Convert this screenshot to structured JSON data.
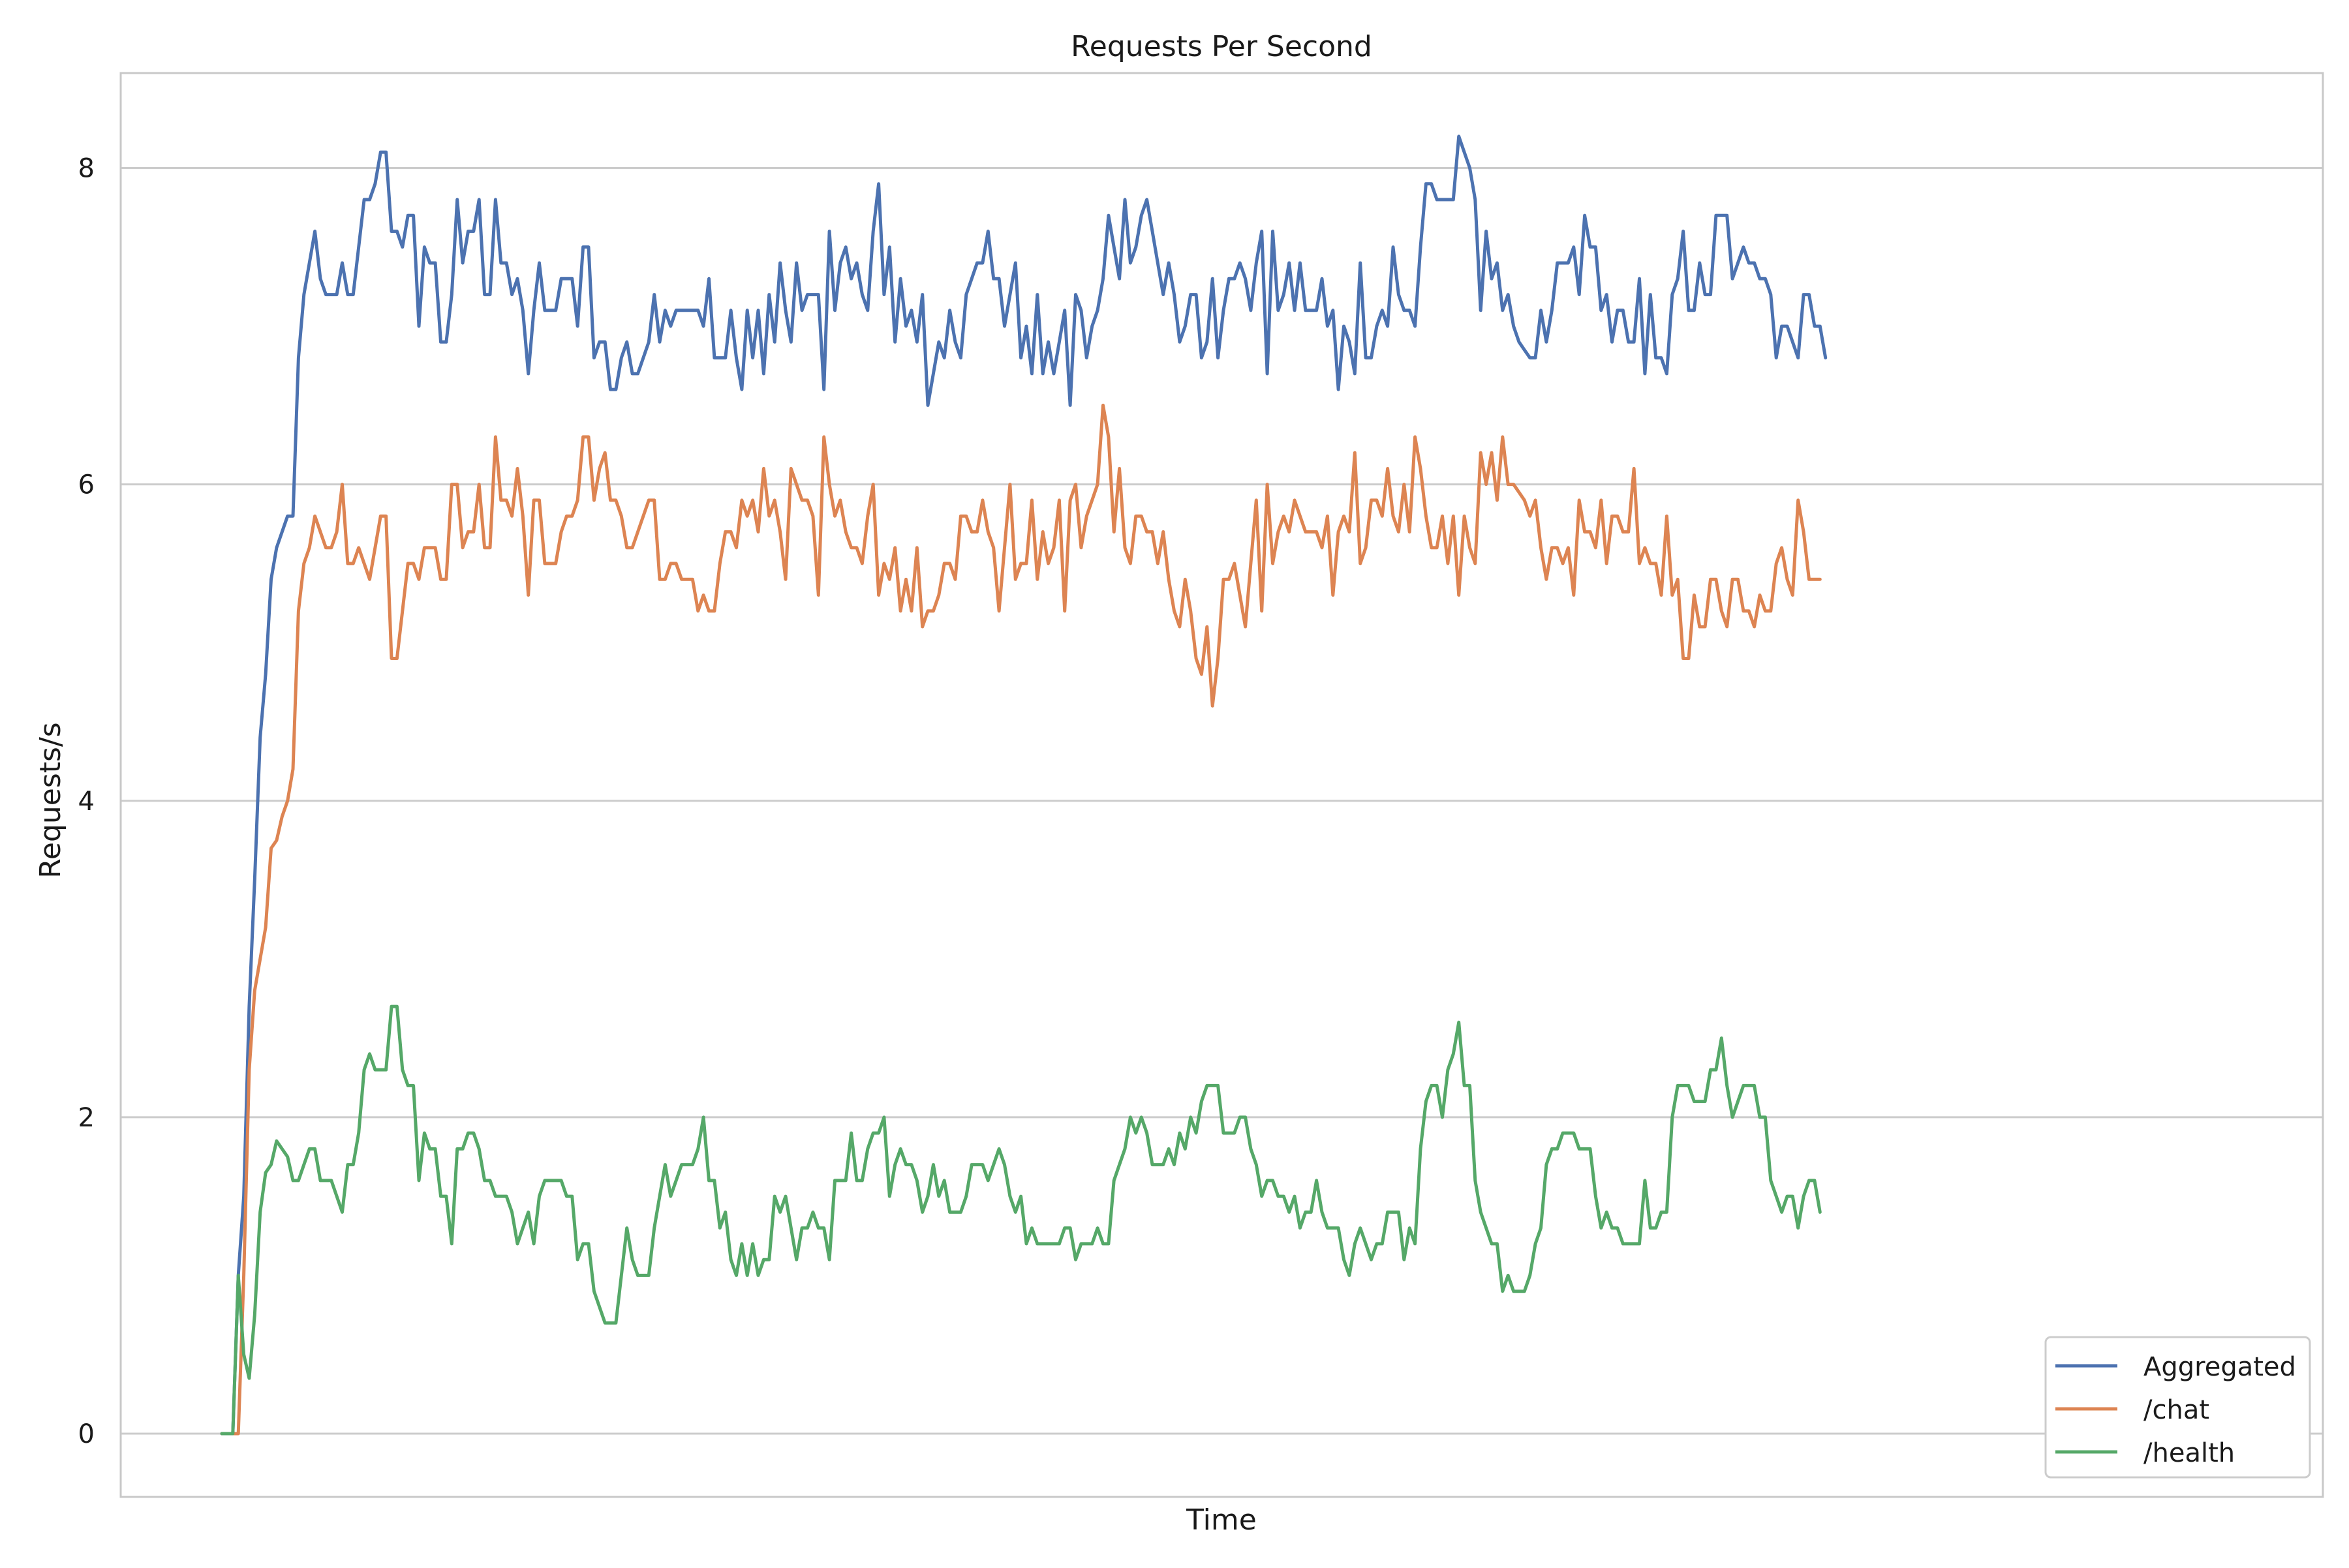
{
  "chart_data": {
    "type": "line",
    "title": "Requests Per Second",
    "xlabel": "Time",
    "ylabel": "Requests/s",
    "ylim": [
      -0.4,
      8.6
    ],
    "xlim": [
      0,
      366
    ],
    "yticks": [
      0,
      2,
      4,
      6,
      8
    ],
    "grid": "horizontal",
    "legend_position": "lower-right",
    "style": {
      "background": "#ffffff",
      "grid_color": "#cccccc",
      "frame_color": "#c8c8c8",
      "text_color": "#1a1a1a"
    },
    "series": [
      {
        "name": "Aggregated",
        "color": "#4C72B0",
        "values": [
          0,
          0,
          0,
          1.0,
          1.5,
          2.7,
          3.5,
          4.4,
          4.8,
          5.4,
          5.6,
          5.7,
          5.8,
          5.8,
          6.8,
          7.2,
          7.4,
          7.6,
          7.3,
          7.2,
          7.2,
          7.2,
          7.4,
          7.2,
          7.2,
          7.5,
          7.8,
          7.8,
          7.9,
          8.1,
          8.1,
          7.6,
          7.6,
          7.5,
          7.7,
          7.7,
          7.0,
          7.5,
          7.4,
          7.4,
          6.9,
          6.9,
          7.2,
          7.8,
          7.4,
          7.6,
          7.6,
          7.8,
          7.2,
          7.2,
          7.8,
          7.4,
          7.4,
          7.2,
          7.3,
          7.1,
          6.7,
          7.1,
          7.4,
          7.1,
          7.1,
          7.1,
          7.3,
          7.3,
          7.3,
          7.0,
          7.5,
          7.5,
          6.8,
          6.9,
          6.9,
          6.6,
          6.6,
          6.8,
          6.9,
          6.7,
          6.7,
          6.8,
          6.9,
          7.2,
          6.9,
          7.1,
          7.0,
          7.1,
          7.1,
          7.1,
          7.1,
          7.1,
          7.0,
          7.3,
          6.8,
          6.8,
          6.8,
          7.1,
          6.8,
          6.6,
          7.1,
          6.8,
          7.1,
          6.7,
          7.2,
          6.9,
          7.4,
          7.1,
          6.9,
          7.4,
          7.1,
          7.2,
          7.2,
          7.2,
          6.6,
          7.6,
          7.1,
          7.4,
          7.5,
          7.3,
          7.4,
          7.2,
          7.1,
          7.6,
          7.9,
          7.2,
          7.5,
          6.9,
          7.3,
          7.0,
          7.1,
          6.9,
          7.2,
          6.5,
          6.7,
          6.9,
          6.8,
          7.1,
          6.9,
          6.8,
          7.2,
          7.3,
          7.4,
          7.4,
          7.6,
          7.3,
          7.3,
          7.0,
          7.2,
          7.4,
          6.8,
          7.0,
          6.7,
          7.2,
          6.7,
          6.9,
          6.7,
          6.9,
          7.1,
          6.5,
          7.2,
          7.1,
          6.8,
          7.0,
          7.1,
          7.3,
          7.7,
          7.5,
          7.3,
          7.8,
          7.4,
          7.5,
          7.7,
          7.8,
          7.6,
          7.4,
          7.2,
          7.4,
          7.2,
          6.9,
          7.0,
          7.2,
          7.2,
          6.8,
          6.9,
          7.3,
          6.8,
          7.1,
          7.3,
          7.3,
          7.4,
          7.3,
          7.1,
          7.4,
          7.6,
          6.7,
          7.6,
          7.1,
          7.2,
          7.4,
          7.1,
          7.4,
          7.1,
          7.1,
          7.1,
          7.3,
          7.0,
          7.1,
          6.6,
          7.0,
          6.9,
          6.7,
          7.4,
          6.8,
          6.8,
          7.0,
          7.1,
          7.0,
          7.5,
          7.2,
          7.1,
          7.1,
          7.0,
          7.5,
          7.9,
          7.9,
          7.8,
          7.8,
          7.8,
          7.8,
          8.2,
          8.1,
          8.0,
          7.8,
          7.1,
          7.6,
          7.3,
          7.4,
          7.1,
          7.2,
          7.0,
          6.9,
          6.85,
          6.8,
          6.8,
          7.1,
          6.9,
          7.1,
          7.4,
          7.4,
          7.4,
          7.5,
          7.2,
          7.7,
          7.5,
          7.5,
          7.1,
          7.2,
          6.9,
          7.1,
          7.1,
          6.9,
          6.9,
          7.3,
          6.7,
          7.2,
          6.8,
          6.8,
          6.7,
          7.2,
          7.3,
          7.6,
          7.1,
          7.1,
          7.4,
          7.2,
          7.2,
          7.7,
          7.7,
          7.7,
          7.3,
          7.4,
          7.5,
          7.4,
          7.4,
          7.3,
          7.3,
          7.2,
          6.8,
          7.0,
          7.0,
          6.9,
          6.8,
          7.2,
          7.2,
          7.0,
          7.0,
          6.8
        ]
      },
      {
        "name": "/chat",
        "color": "#DD8452",
        "values": [
          0,
          0,
          0,
          0,
          1.0,
          2.3,
          2.8,
          3.0,
          3.2,
          3.7,
          3.75,
          3.9,
          4.0,
          4.2,
          5.2,
          5.5,
          5.6,
          5.8,
          5.7,
          5.6,
          5.6,
          5.7,
          6.0,
          5.5,
          5.5,
          5.6,
          5.5,
          5.4,
          5.6,
          5.8,
          5.8,
          4.9,
          4.9,
          5.2,
          5.5,
          5.5,
          5.4,
          5.6,
          5.6,
          5.6,
          5.4,
          5.4,
          6.0,
          6.0,
          5.6,
          5.7,
          5.7,
          6.0,
          5.6,
          5.6,
          6.3,
          5.9,
          5.9,
          5.8,
          6.1,
          5.8,
          5.3,
          5.9,
          5.9,
          5.5,
          5.5,
          5.5,
          5.7,
          5.8,
          5.8,
          5.9,
          6.3,
          6.3,
          5.9,
          6.1,
          6.2,
          5.9,
          5.9,
          5.8,
          5.6,
          5.6,
          5.7,
          5.8,
          5.9,
          5.9,
          5.4,
          5.4,
          5.5,
          5.5,
          5.4,
          5.4,
          5.4,
          5.2,
          5.3,
          5.2,
          5.2,
          5.5,
          5.7,
          5.7,
          5.6,
          5.9,
          5.8,
          5.9,
          5.7,
          6.1,
          5.8,
          5.9,
          5.7,
          5.4,
          6.1,
          6.0,
          5.9,
          5.9,
          5.8,
          5.3,
          6.3,
          6.0,
          5.8,
          5.9,
          5.7,
          5.6,
          5.6,
          5.5,
          5.8,
          6.0,
          5.3,
          5.5,
          5.4,
          5.6,
          5.2,
          5.4,
          5.2,
          5.6,
          5.1,
          5.2,
          5.2,
          5.3,
          5.5,
          5.5,
          5.4,
          5.8,
          5.8,
          5.7,
          5.7,
          5.9,
          5.7,
          5.6,
          5.2,
          5.6,
          6.0,
          5.4,
          5.5,
          5.5,
          5.9,
          5.4,
          5.7,
          5.5,
          5.6,
          5.9,
          5.2,
          5.9,
          6.0,
          5.6,
          5.8,
          5.9,
          6.0,
          6.5,
          6.3,
          5.7,
          6.1,
          5.6,
          5.5,
          5.8,
          5.8,
          5.7,
          5.7,
          5.5,
          5.7,
          5.4,
          5.2,
          5.1,
          5.4,
          5.2,
          4.9,
          4.8,
          5.1,
          4.6,
          4.9,
          5.4,
          5.4,
          5.5,
          5.3,
          5.1,
          5.5,
          5.9,
          5.2,
          6.0,
          5.5,
          5.7,
          5.8,
          5.7,
          5.9,
          5.8,
          5.7,
          5.7,
          5.7,
          5.6,
          5.8,
          5.3,
          5.7,
          5.8,
          5.7,
          6.2,
          5.5,
          5.6,
          5.9,
          5.9,
          5.8,
          6.1,
          5.8,
          5.7,
          6.0,
          5.7,
          6.3,
          6.1,
          5.8,
          5.6,
          5.6,
          5.8,
          5.5,
          5.8,
          5.3,
          5.8,
          5.6,
          5.5,
          6.2,
          6.0,
          6.2,
          5.9,
          6.3,
          6.0,
          6.0,
          5.95,
          5.9,
          5.8,
          5.9,
          5.6,
          5.4,
          5.6,
          5.6,
          5.5,
          5.6,
          5.3,
          5.9,
          5.7,
          5.7,
          5.6,
          5.9,
          5.5,
          5.8,
          5.8,
          5.7,
          5.7,
          6.1,
          5.5,
          5.6,
          5.5,
          5.5,
          5.3,
          5.8,
          5.3,
          5.4,
          4.9,
          4.9,
          5.3,
          5.1,
          5.1,
          5.4,
          5.4,
          5.2,
          5.1,
          5.4,
          5.4,
          5.2,
          5.2,
          5.1,
          5.3,
          5.2,
          5.2,
          5.5,
          5.6,
          5.4,
          5.3,
          5.9,
          5.7,
          5.4,
          5.4,
          5.4
        ]
      },
      {
        "name": "/health",
        "color": "#55A868",
        "values": [
          0,
          0,
          0,
          1.0,
          0.5,
          0.35,
          0.75,
          1.4,
          1.65,
          1.7,
          1.85,
          1.8,
          1.75,
          1.6,
          1.6,
          1.7,
          1.8,
          1.8,
          1.6,
          1.6,
          1.6,
          1.5,
          1.4,
          1.7,
          1.7,
          1.9,
          2.3,
          2.4,
          2.3,
          2.3,
          2.3,
          2.7,
          2.7,
          2.3,
          2.2,
          2.2,
          1.6,
          1.9,
          1.8,
          1.8,
          1.5,
          1.5,
          1.2,
          1.8,
          1.8,
          1.9,
          1.9,
          1.8,
          1.6,
          1.6,
          1.5,
          1.5,
          1.5,
          1.4,
          1.2,
          1.3,
          1.4,
          1.2,
          1.5,
          1.6,
          1.6,
          1.6,
          1.6,
          1.5,
          1.5,
          1.1,
          1.2,
          1.2,
          0.9,
          0.8,
          0.7,
          0.7,
          0.7,
          1.0,
          1.3,
          1.1,
          1.0,
          1.0,
          1.0,
          1.3,
          1.5,
          1.7,
          1.5,
          1.6,
          1.7,
          1.7,
          1.7,
          1.8,
          2.0,
          1.6,
          1.6,
          1.3,
          1.4,
          1.1,
          1.0,
          1.2,
          1.0,
          1.2,
          1.0,
          1.1,
          1.1,
          1.5,
          1.4,
          1.5,
          1.3,
          1.1,
          1.3,
          1.3,
          1.4,
          1.3,
          1.3,
          1.1,
          1.6,
          1.6,
          1.6,
          1.9,
          1.6,
          1.6,
          1.8,
          1.9,
          1.9,
          2.0,
          1.5,
          1.7,
          1.8,
          1.7,
          1.7,
          1.6,
          1.4,
          1.5,
          1.7,
          1.5,
          1.6,
          1.4,
          1.4,
          1.4,
          1.5,
          1.7,
          1.7,
          1.7,
          1.6,
          1.7,
          1.8,
          1.7,
          1.5,
          1.4,
          1.5,
          1.2,
          1.3,
          1.2,
          1.2,
          1.2,
          1.2,
          1.2,
          1.3,
          1.3,
          1.1,
          1.2,
          1.2,
          1.2,
          1.3,
          1.2,
          1.2,
          1.6,
          1.7,
          1.8,
          2.0,
          1.9,
          2.0,
          1.9,
          1.7,
          1.7,
          1.7,
          1.8,
          1.7,
          1.9,
          1.8,
          2.0,
          1.9,
          2.1,
          2.2,
          2.2,
          2.2,
          1.9,
          1.9,
          1.9,
          2.0,
          2.0,
          1.8,
          1.7,
          1.5,
          1.6,
          1.6,
          1.5,
          1.5,
          1.4,
          1.5,
          1.3,
          1.4,
          1.4,
          1.6,
          1.4,
          1.3,
          1.3,
          1.3,
          1.1,
          1.0,
          1.2,
          1.3,
          1.2,
          1.1,
          1.2,
          1.2,
          1.4,
          1.4,
          1.4,
          1.1,
          1.3,
          1.2,
          1.8,
          2.1,
          2.2,
          2.2,
          2.0,
          2.3,
          2.4,
          2.6,
          2.2,
          2.2,
          1.6,
          1.4,
          1.3,
          1.2,
          1.2,
          0.9,
          1.0,
          0.9,
          0.9,
          0.9,
          1.0,
          1.2,
          1.3,
          1.7,
          1.8,
          1.8,
          1.9,
          1.9,
          1.9,
          1.8,
          1.8,
          1.8,
          1.5,
          1.3,
          1.4,
          1.3,
          1.3,
          1.2,
          1.2,
          1.2,
          1.2,
          1.6,
          1.3,
          1.3,
          1.4,
          1.4,
          2.0,
          2.2,
          2.2,
          2.2,
          2.1,
          2.1,
          2.1,
          2.3,
          2.3,
          2.5,
          2.2,
          2.0,
          2.1,
          2.2,
          2.2,
          2.2,
          2.0,
          2.0,
          1.6,
          1.5,
          1.4,
          1.5,
          1.5,
          1.3,
          1.5,
          1.6,
          1.6,
          1.4
        ]
      }
    ]
  }
}
